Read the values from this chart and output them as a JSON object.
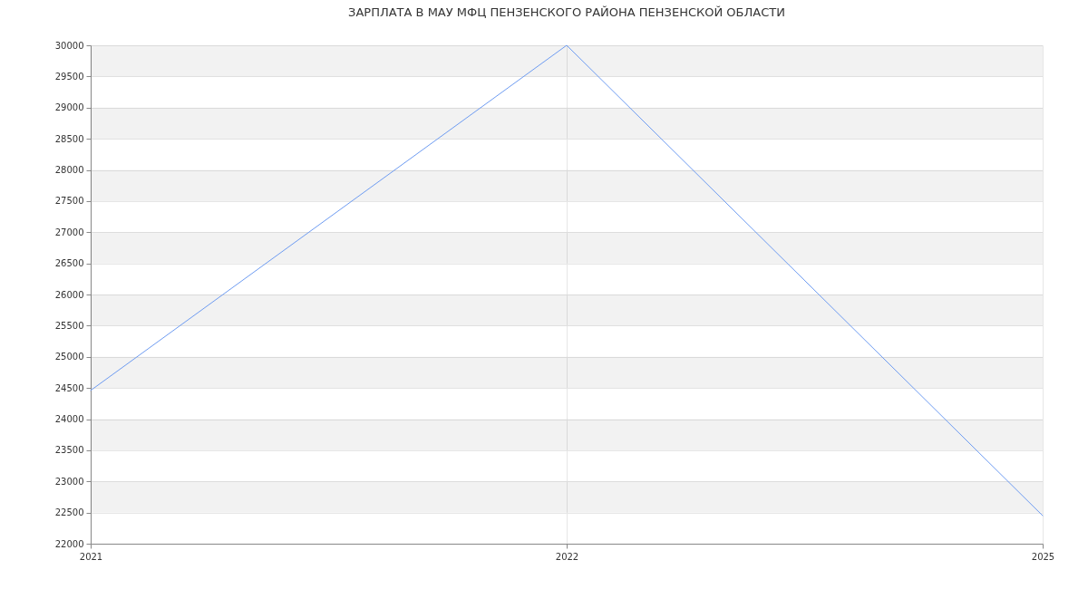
{
  "chart_data": {
    "type": "line",
    "title": "ЗАРПЛАТА В МАУ МФЦ ПЕНЗЕНСКОГО РАЙОНА ПЕНЗЕНСКОЙ ОБЛАСТИ",
    "categories": [
      "2021",
      "2022",
      "2025"
    ],
    "series": [
      {
        "color": "#6d9bf1",
        "values": [
          24460,
          30000,
          22450
        ]
      }
    ],
    "ylim": [
      22000,
      30000
    ],
    "yticks": [
      22000,
      22500,
      23000,
      23500,
      24000,
      24500,
      25000,
      25500,
      26000,
      26500,
      27000,
      27500,
      28000,
      28500,
      29000,
      29500,
      30000
    ],
    "grid": true
  }
}
